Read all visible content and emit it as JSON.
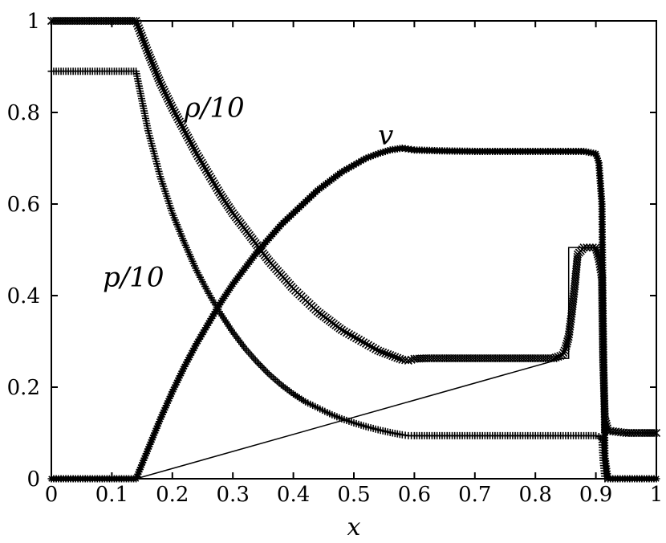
{
  "chart_data": {
    "type": "line",
    "title": "",
    "xlabel": "x",
    "ylabel": "",
    "xlim": [
      0,
      1
    ],
    "ylim": [
      0,
      1
    ],
    "grid": false,
    "legend": "none",
    "x_ticks": [
      "0",
      "0.1",
      "0.2",
      "0.3",
      "0.4",
      "0.5",
      "0.6",
      "0.7",
      "0.8",
      "0.9",
      "1"
    ],
    "y_ticks": [
      "0",
      "0.2",
      "0.4",
      "0.6",
      "0.8",
      "1"
    ],
    "annotations": [
      {
        "text": "ρ/10",
        "x": 0.22,
        "y": 0.79,
        "target": "density"
      },
      {
        "text": "v",
        "x": 0.54,
        "y": 0.73,
        "target": "velocity"
      },
      {
        "text": "p/10",
        "x": 0.085,
        "y": 0.42,
        "target": "pressure"
      }
    ],
    "series": [
      {
        "key": "density",
        "marker": "x",
        "x": [
          0,
          0.02,
          0.04,
          0.06,
          0.08,
          0.1,
          0.12,
          0.14,
          0.16,
          0.18,
          0.2,
          0.22,
          0.24,
          0.26,
          0.28,
          0.3,
          0.32,
          0.34,
          0.36,
          0.38,
          0.4,
          0.42,
          0.44,
          0.46,
          0.48,
          0.5,
          0.52,
          0.54,
          0.56,
          0.58,
          0.59,
          0.6,
          0.62,
          0.65,
          0.7,
          0.75,
          0.8,
          0.83,
          0.845,
          0.85,
          0.855,
          0.86,
          0.865,
          0.87,
          0.88,
          0.89,
          0.9,
          0.905,
          0.91,
          0.912,
          0.915,
          0.92,
          0.95,
          0.98,
          1.0
        ],
        "y": [
          1.0,
          1.0,
          1.0,
          1.0,
          1.0,
          1.0,
          1.0,
          1.0,
          0.93,
          0.865,
          0.81,
          0.76,
          0.71,
          0.665,
          0.62,
          0.58,
          0.545,
          0.51,
          0.475,
          0.445,
          0.415,
          0.39,
          0.365,
          0.345,
          0.325,
          0.31,
          0.295,
          0.28,
          0.27,
          0.26,
          0.258,
          0.262,
          0.263,
          0.263,
          0.263,
          0.263,
          0.263,
          0.263,
          0.27,
          0.285,
          0.31,
          0.36,
          0.42,
          0.49,
          0.505,
          0.505,
          0.505,
          0.48,
          0.44,
          0.26,
          0.13,
          0.105,
          0.1,
          0.1,
          0.1
        ]
      },
      {
        "key": "pressure",
        "marker": "+",
        "x": [
          0,
          0.02,
          0.04,
          0.06,
          0.08,
          0.1,
          0.12,
          0.14,
          0.16,
          0.18,
          0.2,
          0.22,
          0.24,
          0.26,
          0.28,
          0.3,
          0.32,
          0.34,
          0.36,
          0.38,
          0.4,
          0.42,
          0.44,
          0.46,
          0.48,
          0.5,
          0.52,
          0.54,
          0.56,
          0.58,
          0.59,
          0.6,
          0.65,
          0.7,
          0.75,
          0.8,
          0.85,
          0.88,
          0.9,
          0.905,
          0.91,
          0.912,
          0.915
        ],
        "y": [
          0.89,
          0.89,
          0.89,
          0.89,
          0.89,
          0.89,
          0.89,
          0.89,
          0.76,
          0.66,
          0.58,
          0.515,
          0.455,
          0.405,
          0.36,
          0.32,
          0.285,
          0.255,
          0.228,
          0.205,
          0.185,
          0.168,
          0.155,
          0.142,
          0.131,
          0.122,
          0.114,
          0.107,
          0.101,
          0.096,
          0.094,
          0.094,
          0.094,
          0.094,
          0.094,
          0.094,
          0.094,
          0.094,
          0.094,
          0.092,
          0.085,
          0.04,
          0.0
        ]
      },
      {
        "key": "velocity",
        "marker": "*",
        "x": [
          0,
          0.02,
          0.04,
          0.06,
          0.08,
          0.1,
          0.12,
          0.14,
          0.16,
          0.18,
          0.2,
          0.22,
          0.24,
          0.26,
          0.28,
          0.3,
          0.32,
          0.34,
          0.36,
          0.38,
          0.4,
          0.42,
          0.44,
          0.46,
          0.48,
          0.5,
          0.52,
          0.54,
          0.56,
          0.58,
          0.59,
          0.6,
          0.65,
          0.7,
          0.75,
          0.8,
          0.85,
          0.88,
          0.9,
          0.905,
          0.91,
          0.912,
          0.915,
          0.92,
          0.94,
          0.96,
          0.98,
          1.0
        ],
        "y": [
          0,
          0,
          0,
          0,
          0,
          0,
          0,
          0,
          0.065,
          0.13,
          0.19,
          0.245,
          0.295,
          0.34,
          0.385,
          0.425,
          0.46,
          0.495,
          0.525,
          0.555,
          0.58,
          0.605,
          0.63,
          0.65,
          0.67,
          0.685,
          0.7,
          0.71,
          0.718,
          0.722,
          0.72,
          0.718,
          0.716,
          0.715,
          0.715,
          0.715,
          0.715,
          0.715,
          0.71,
          0.69,
          0.6,
          0.35,
          0.05,
          0.0,
          0.0,
          0.0,
          0.0,
          0.0
        ]
      }
    ],
    "exact_solution": {
      "marker": "none",
      "x": [
        0.0,
        0.14,
        0.845,
        0.855,
        0.855,
        0.91,
        0.91,
        1.0
      ],
      "y": [
        0.0,
        0.0,
        0.263,
        0.263,
        0.505,
        0.505,
        0.1,
        0.1
      ]
    }
  }
}
